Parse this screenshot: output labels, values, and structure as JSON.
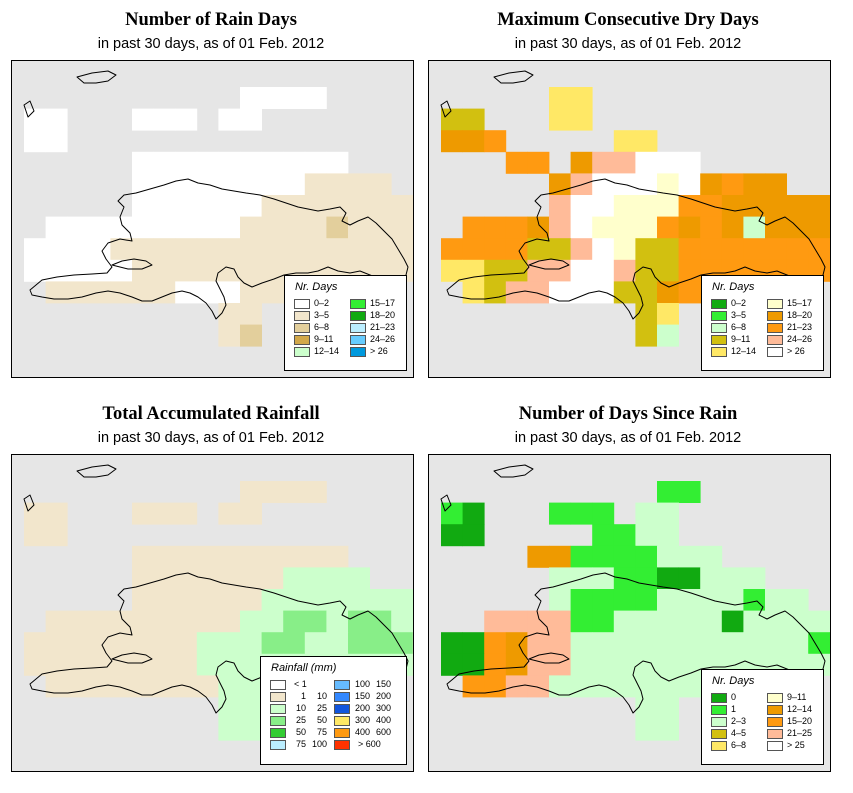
{
  "palettes": {
    "raindays": [
      "#ffffff",
      "#f2e6cc",
      "#e3cf9c",
      "#d2a84a",
      "#ccffcc",
      "#33ee33",
      "#11aa11",
      "#bbeeff",
      "#66ccff",
      "#0099dd"
    ],
    "drydays": [
      "#11aa11",
      "#33ee33",
      "#ccffcc",
      "#d2c010",
      "#ffe866",
      "#ffffcc",
      "#ee9a00",
      "#ff9a11",
      "#ffbb99",
      "#ffffff"
    ],
    "rainfall": [
      "#ffffff",
      "#f2e6cc",
      "#ccffcc",
      "#88ee88",
      "#33cc33",
      "#bbeeff",
      "#66bbff",
      "#3388ff",
      "#1155dd",
      "#ffe866",
      "#ff9a11",
      "#ff3300"
    ],
    "sincerain": [
      "#11aa11",
      "#33ee33",
      "#ccffcc",
      "#d2c010",
      "#ffe866",
      "#ffffcc",
      "#ee9a00",
      "#ff9a11",
      "#ffbb99",
      "#ffffff"
    ]
  },
  "panels": [
    {
      "id": "rain-days",
      "title": "Number of Rain Days",
      "subtitle": "in past 30 days, as of  01 Feb. 2012",
      "palette": "raindays",
      "legend": {
        "title": "Nr. Days",
        "items": [
          {
            "label": "0–2",
            "color": 0
          },
          {
            "label": "3–5",
            "color": 1
          },
          {
            "label": "6–8",
            "color": 2
          },
          {
            "label": "9–11",
            "color": 3
          },
          {
            "label": "12–14",
            "color": 4
          },
          {
            "label": "15–17",
            "color": 5
          },
          {
            "label": "18–20",
            "color": 6
          },
          {
            "label": "21–23",
            "color": 7
          },
          {
            "label": "24–26",
            "color": 8
          },
          {
            "label": "> 26",
            "color": 9
          }
        ]
      },
      "grid": [
        "..........AAAA.....",
        "AA...AAA.AA........",
        "AA.................",
        ".....AAAAAAAAAA....",
        ".....AAAAAAAABBBB..",
        ".....AAAAAABBBBBBB.",
        ".AAAAAAAAABBBBCBBB.",
        "AAAABBBBBBBBBBBBBBB",
        "AAAAABBBBBBBBBBBBBB",
        ".BBBBBBAAABBB......",
        ".........BB........",
        ".........BC........"
      ]
    },
    {
      "id": "dry-days",
      "title": "Maximum Consecutive Dry Days",
      "subtitle": "in past 30 days, as of  01 Feb. 2012",
      "palette": "drydays",
      "legend": {
        "title": "Nr. Days",
        "items": [
          {
            "label": "0–2",
            "color": 0
          },
          {
            "label": "3–5",
            "color": 1
          },
          {
            "label": "6–8",
            "color": 2
          },
          {
            "label": "9–11",
            "color": 3
          },
          {
            "label": "12–14",
            "color": 4
          },
          {
            "label": "15–17",
            "color": 5
          },
          {
            "label": "18–20",
            "color": 6
          },
          {
            "label": "21–23",
            "color": 7
          },
          {
            "label": "24–26",
            "color": 8
          },
          {
            "label": "> 26",
            "color": 9
          }
        ]
      },
      "grid": [
        ".....EE............",
        "DD...EE............",
        "GGH.....EE.........",
        "...HH.GIIJJJ.......",
        ".....GIJJJFJGHGG...",
        ".....IJJFFFHHGGGGG.",
        ".HHHGIJFFFHGHGCGGG.",
        "HHHHDDIJFDDHHHHHHHH",
        "EEDDIIJJIDDHHHHHHHH",
        ".EDIIJJJDDGHHH.....",
        ".........DE........",
        ".........DC........"
      ]
    },
    {
      "id": "total-rainfall",
      "title": "Total Accumulated Rainfall",
      "subtitle": "in past 30 days, as of  01 Feb. 2012",
      "palette": "rainfall",
      "legend": {
        "title": "Rainfall (mm)",
        "items": [
          {
            "lo": "< 1",
            "hi": "",
            "color": 0
          },
          {
            "lo": "1",
            "hi": "10",
            "color": 1
          },
          {
            "lo": "10",
            "hi": "25",
            "color": 2
          },
          {
            "lo": "25",
            "hi": "50",
            "color": 3
          },
          {
            "lo": "50",
            "hi": "75",
            "color": 4
          },
          {
            "lo": "75",
            "hi": "100",
            "color": 5
          },
          {
            "lo": "100",
            "hi": "150",
            "color": 6
          },
          {
            "lo": "150",
            "hi": "200",
            "color": 7
          },
          {
            "lo": "200",
            "hi": "300",
            "color": 8
          },
          {
            "lo": "300",
            "hi": "400",
            "color": 9
          },
          {
            "lo": "400",
            "hi": "600",
            "color": 10
          },
          {
            "lo": "> 600",
            "hi": "",
            "color": 11
          }
        ]
      },
      "grid": [
        "..........BBBB.....",
        "BB...BBB.BB........",
        "BB.................",
        ".....BBBBBBBBBB....",
        ".....BBBBBBBCCCC...",
        ".....BBBBBBCCCCCCC.",
        ".BBBBBBBBBCCDDCDDC.",
        "BBBBBBBBCCCDDCCDDDB",
        "BBBBBBBBCCCCCCCCCCB",
        ".BBBBBBBBCCCC......",
        ".........CC........",
        ".........CC........"
      ]
    },
    {
      "id": "since-rain",
      "title": "Number of Days Since Rain",
      "subtitle": "in past 30 days, as of  01 Feb. 2012",
      "palette": "sincerain",
      "legend": {
        "title": "Nr. Days",
        "items": [
          {
            "label": "0",
            "color": 0
          },
          {
            "label": "1",
            "color": 1
          },
          {
            "label": "2–3",
            "color": 2
          },
          {
            "label": "4–5",
            "color": 3
          },
          {
            "label": "6–8",
            "color": 4
          },
          {
            "label": "9–11",
            "color": 5
          },
          {
            "label": "12–14",
            "color": 6
          },
          {
            "label": "15–20",
            "color": 7
          },
          {
            "label": "21–25",
            "color": 8
          },
          {
            "label": "> 25",
            "color": 9
          }
        ]
      },
      "grid": [
        "..........BB.......",
        "BA...BBB.CC........",
        "AA.....BBCC........",
        "....GGBBBBCCC......",
        ".....CCCBBAACCC....",
        ".....CBBBBCCCCBCC..",
        "..IIIIBBCCCCCACCCC.",
        "AAHGIICCCCCCCCCCCBB",
        "AAHGIICCCCCCCCCCCCC",
        ".HHIICCCCCCCC......",
        ".........CC........",
        ".........CC........"
      ]
    }
  ]
}
